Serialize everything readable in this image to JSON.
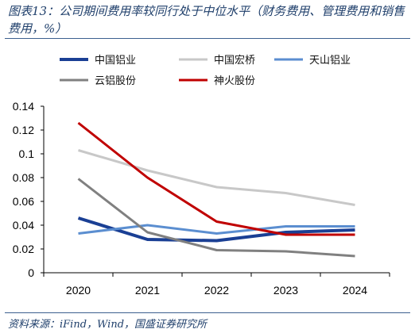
{
  "title": "图表13：公司期间费用率较同行处于中位水平（财务费用、管理费用和销售费用，%）",
  "source": "资料来源：iFind，Wind，国盛证券研究所",
  "chart_data": {
    "type": "line",
    "categories": [
      "2020",
      "2021",
      "2022",
      "2023",
      "2024"
    ],
    "ylim": [
      0,
      0.14
    ],
    "yticks": [
      "0",
      "0.02",
      "0.04",
      "0.06",
      "0.08",
      "0.1",
      "0.12",
      "0.14"
    ],
    "legend_position": "top",
    "grid": false,
    "series": [
      {
        "name": "中国铝业",
        "color": "#1a3f94",
        "width": 4,
        "values": [
          0.046,
          0.028,
          0.027,
          0.034,
          0.036
        ]
      },
      {
        "name": "中国宏桥",
        "color": "#c8c8c8",
        "width": 3,
        "values": [
          0.103,
          0.086,
          0.072,
          0.067,
          0.057
        ]
      },
      {
        "name": "天山铝业",
        "color": "#5b8ed0",
        "width": 3,
        "values": [
          0.033,
          0.04,
          0.033,
          0.039,
          0.039
        ]
      },
      {
        "name": "云铝股份",
        "color": "#808080",
        "width": 3,
        "values": [
          0.079,
          0.034,
          0.019,
          0.018,
          0.014
        ]
      },
      {
        "name": "神火股份",
        "color": "#c00000",
        "width": 3,
        "values": [
          0.126,
          0.08,
          0.043,
          0.032,
          0.032
        ]
      }
    ]
  }
}
